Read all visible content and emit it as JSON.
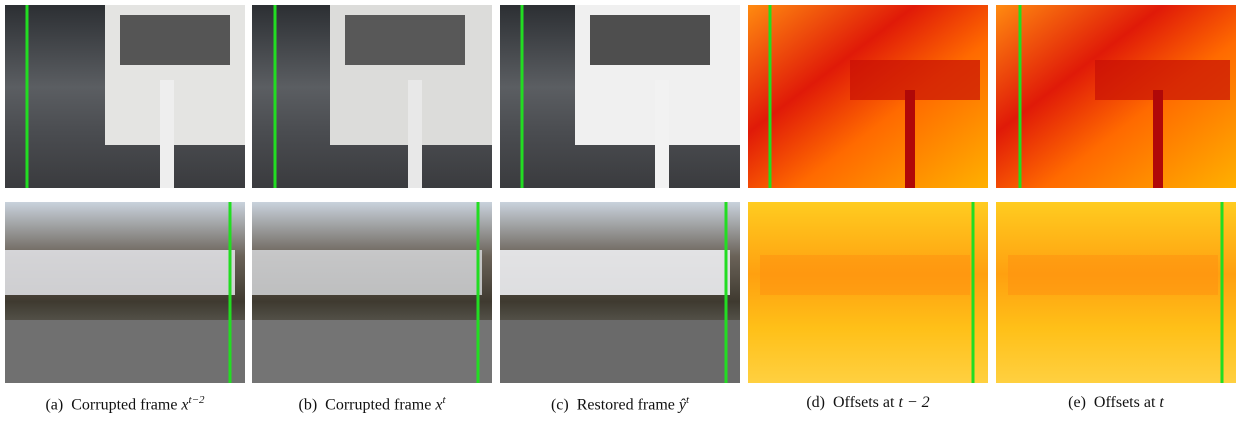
{
  "captions": [
    {
      "label": "(a)",
      "text": "Corrupted frame",
      "math": "x",
      "sup": "t−2"
    },
    {
      "label": "(b)",
      "text": "Corrupted frame",
      "math": "x",
      "sup": "t"
    },
    {
      "label": "(c)",
      "text": "Restored frame",
      "math": "ŷ",
      "sup": "t"
    },
    {
      "label": "(d)",
      "text": "Offsets at",
      "math": "t − 2"
    },
    {
      "label": "(e)",
      "text": "Offsets at",
      "math": "t"
    }
  ]
}
